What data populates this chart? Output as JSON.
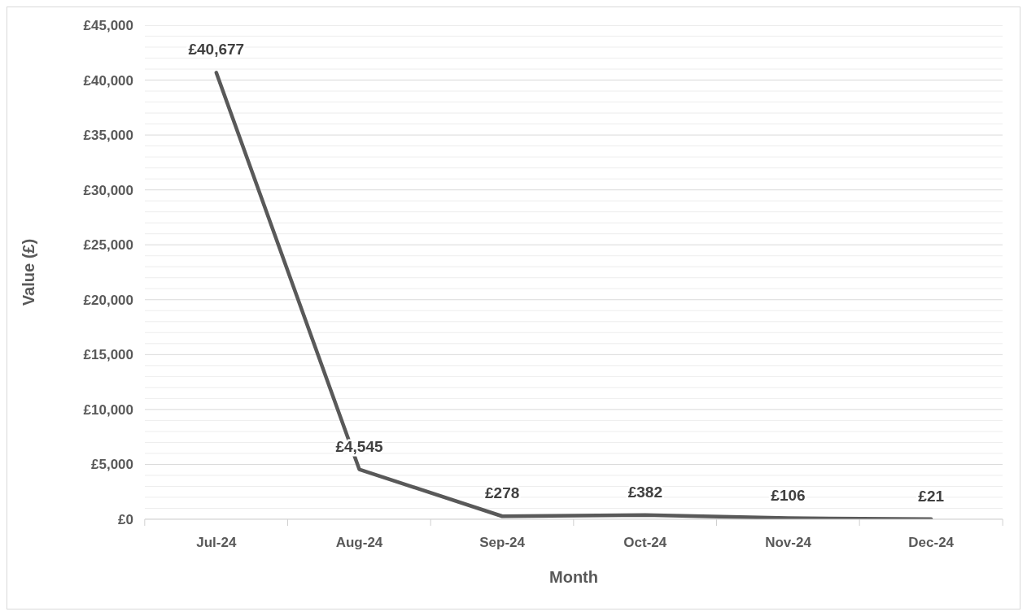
{
  "chart_data": {
    "type": "line",
    "xlabel": "Month",
    "ylabel": "Value (£)",
    "categories": [
      "Jul-24",
      "Aug-24",
      "Sep-24",
      "Oct-24",
      "Nov-24",
      "Dec-24"
    ],
    "series": [
      {
        "color": "#595959",
        "values": [
          40677,
          4545,
          278,
          382,
          106,
          21
        ],
        "value_labels": [
          "£40,677",
          "£4,545",
          "£278",
          "£382",
          "£106",
          "£21"
        ]
      }
    ],
    "ylim": [
      0,
      45000
    ],
    "yticks": [
      {
        "value": 0,
        "label": "£0"
      },
      {
        "value": 1000,
        "label": null
      },
      {
        "value": 2000,
        "label": null
      },
      {
        "value": 3000,
        "label": null
      },
      {
        "value": 4000,
        "label": null
      },
      {
        "value": 5000,
        "label": "£5,000"
      },
      {
        "value": 6000,
        "label": null
      },
      {
        "value": 7000,
        "label": null
      },
      {
        "value": 8000,
        "label": null
      },
      {
        "value": 9000,
        "label": null
      },
      {
        "value": 10000,
        "label": "£10,000"
      },
      {
        "value": 11000,
        "label": null
      },
      {
        "value": 12000,
        "label": null
      },
      {
        "value": 13000,
        "label": null
      },
      {
        "value": 14000,
        "label": null
      },
      {
        "value": 15000,
        "label": "£15,000"
      },
      {
        "value": 16000,
        "label": null
      },
      {
        "value": 17000,
        "label": null
      },
      {
        "value": 18000,
        "label": null
      },
      {
        "value": 19000,
        "label": null
      },
      {
        "value": 20000,
        "label": "£20,000"
      },
      {
        "value": 21000,
        "label": null
      },
      {
        "value": 22000,
        "label": null
      },
      {
        "value": 23000,
        "label": null
      },
      {
        "value": 24000,
        "label": null
      },
      {
        "value": 25000,
        "label": "£25,000"
      },
      {
        "value": 26000,
        "label": null
      },
      {
        "value": 27000,
        "label": null
      },
      {
        "value": 28000,
        "label": null
      },
      {
        "value": 29000,
        "label": null
      },
      {
        "value": 30000,
        "label": "£30,000"
      },
      {
        "value": 31000,
        "label": null
      },
      {
        "value": 32000,
        "label": null
      },
      {
        "value": 33000,
        "label": null
      },
      {
        "value": 34000,
        "label": null
      },
      {
        "value": 35000,
        "label": "£35,000"
      },
      {
        "value": 36000,
        "label": null
      },
      {
        "value": 37000,
        "label": null
      },
      {
        "value": 38000,
        "label": null
      },
      {
        "value": 39000,
        "label": null
      },
      {
        "value": 40000,
        "label": "£40,000"
      },
      {
        "value": 41000,
        "label": null
      },
      {
        "value": 42000,
        "label": null
      },
      {
        "value": 43000,
        "label": null
      },
      {
        "value": 44000,
        "label": null
      },
      {
        "value": 45000,
        "label": "£45,000"
      }
    ],
    "grid": "y",
    "marker": "none",
    "line_style": "solid"
  }
}
